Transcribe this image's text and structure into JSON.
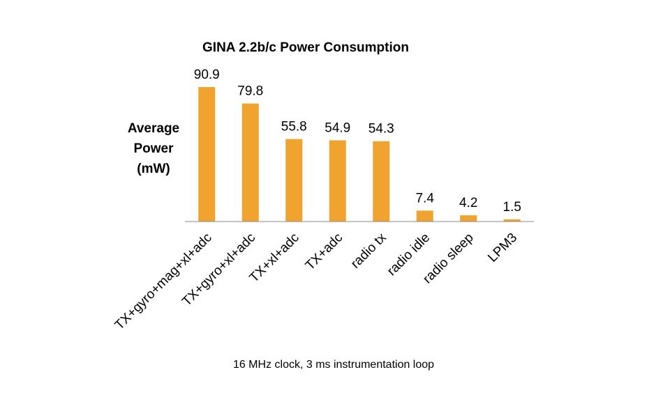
{
  "chart_data": {
    "type": "bar",
    "title": "GINA 2.2b/c Power Consumption",
    "ylabel": [
      "Average",
      "Power",
      "(mW)"
    ],
    "xlabel": "",
    "categories": [
      "TX+gyro+mag+xl+adc",
      "TX+gyro+xl+adc",
      "TX+xl+adc",
      "TX+adc",
      "radio tx",
      "radio idle",
      "radio sleep",
      "LPM3"
    ],
    "values": [
      90.9,
      79.8,
      55.8,
      54.9,
      54.3,
      7.4,
      4.2,
      1.5
    ],
    "data_labels": [
      "90.9",
      "79.8",
      "55.8",
      "54.9",
      "54.3",
      "7.4",
      "4.2",
      "1.5"
    ],
    "ylim": [
      0,
      90.9
    ],
    "grid": false,
    "legend": "none",
    "bar_color": "#F0A32F",
    "axis_color": "#888888"
  },
  "footnote": "16 MHz clock, 3 ms instrumentation  loop"
}
